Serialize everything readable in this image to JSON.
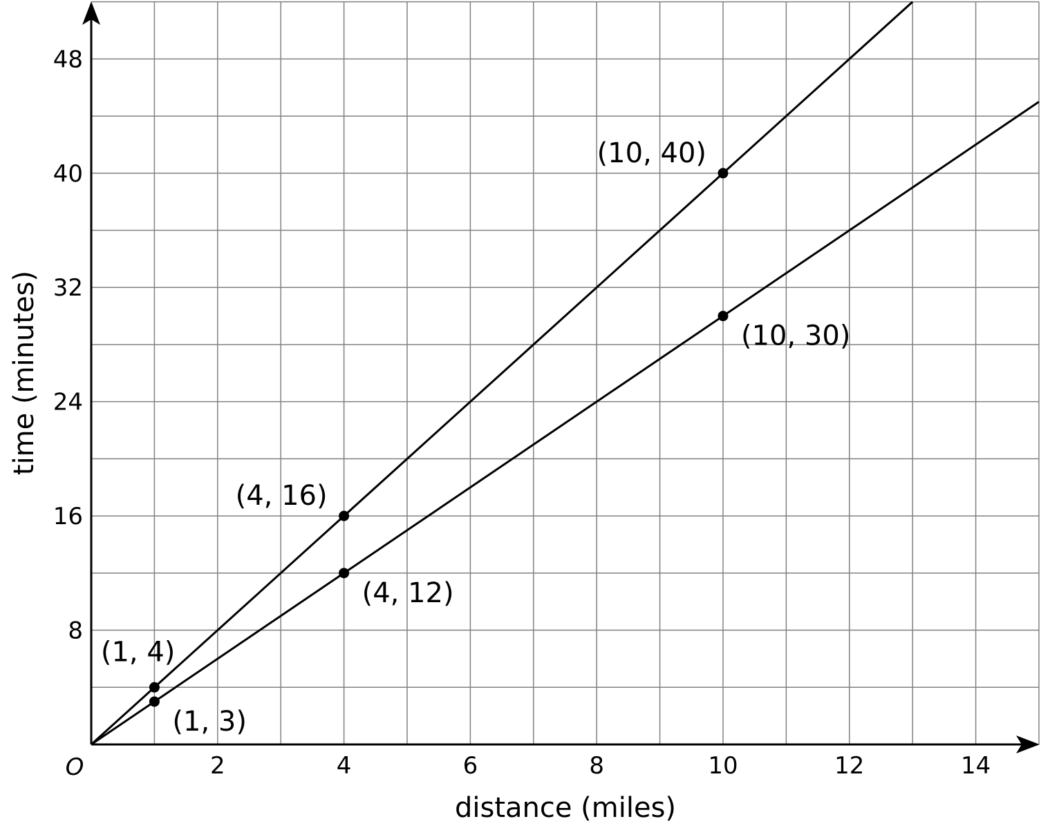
{
  "chart_data": {
    "type": "line",
    "title": "",
    "xlabel": "distance (miles)",
    "ylabel": "time (minutes)",
    "xlim": [
      0,
      15
    ],
    "ylim": [
      0,
      52
    ],
    "x_grid_step": 1,
    "y_grid_step": 4,
    "grid": true,
    "origin_label": "O",
    "x_ticks": [
      2,
      4,
      6,
      8,
      10,
      12,
      14
    ],
    "y_ticks": [
      8,
      16,
      24,
      32,
      40,
      48
    ],
    "line_color": "#000000",
    "grid_color": "#808080",
    "series": [
      {
        "equation": "y = 4x",
        "slope": 4,
        "points": [
          {
            "x": 1,
            "y": 4,
            "label": "(1, 4)"
          },
          {
            "x": 4,
            "y": 16,
            "label": "(4, 16)"
          },
          {
            "x": 10,
            "y": 40,
            "label": "(10, 40)"
          }
        ]
      },
      {
        "equation": "y = 3x",
        "slope": 3,
        "points": [
          {
            "x": 1,
            "y": 3,
            "label": "(1, 3)"
          },
          {
            "x": 4,
            "y": 12,
            "label": "(4, 12)"
          },
          {
            "x": 10,
            "y": 30,
            "label": "(10, 30)"
          }
        ]
      }
    ]
  }
}
